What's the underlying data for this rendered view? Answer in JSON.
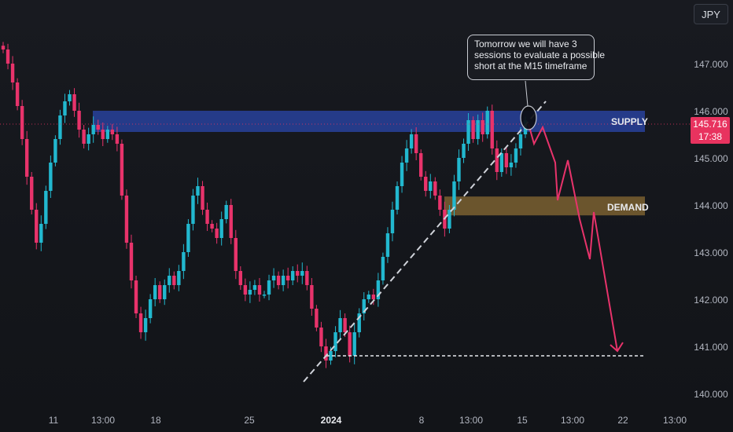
{
  "currency": "JPY",
  "annotation": {
    "lines": [
      "Tomorrow we will have 3",
      "sessions to evaluate a possible",
      "short at the M15 timeframe"
    ]
  },
  "zones": {
    "supply": {
      "label": "SUPPLY",
      "top": 146.0,
      "bottom": 145.55,
      "color": "#2a45a8"
    },
    "demand": {
      "label": "DEMAND",
      "top": 144.18,
      "bottom": 143.78,
      "color": "#7a6030"
    }
  },
  "current_price": {
    "value": "145.716",
    "countdown": "17:38",
    "color": "#e8335f"
  },
  "colors": {
    "up": "#22b8cf",
    "down": "#e8336b",
    "projection": "#e8336b",
    "trendline": "#d0d3da"
  },
  "chart_data": {
    "type": "candlestick",
    "y_axis": {
      "ticks": [
        "147.000",
        "146.000",
        "145.000",
        "144.000",
        "143.000",
        "142.000",
        "141.000",
        "140.000"
      ],
      "range": [
        139.85,
        147.75
      ]
    },
    "x_axis": {
      "ticks": [
        "11",
        "13:00",
        "18",
        "25",
        "2024",
        "8",
        "13:00",
        "15",
        "13:00",
        "22",
        "13:00"
      ]
    },
    "current_price": 145.716,
    "support_level": 140.8,
    "trendline": {
      "from": 140.25,
      "to": 146.2
    },
    "projection_path": [
      145.72,
      145.3,
      145.65,
      144.9,
      144.1,
      144.95,
      143.7,
      142.85,
      143.85,
      140.9
    ],
    "price_path": [
      147.3,
      147.0,
      146.6,
      146.1,
      145.4,
      144.6,
      143.9,
      143.2,
      143.6,
      144.3,
      144.9,
      145.4,
      145.9,
      146.2,
      146.35,
      146.0,
      145.6,
      145.3,
      145.5,
      145.7,
      145.6,
      145.4,
      145.6,
      145.5,
      145.3,
      144.2,
      143.2,
      142.4,
      141.7,
      141.3,
      141.6,
      142.0,
      142.3,
      142.0,
      142.3,
      142.5,
      142.3,
      142.6,
      143.0,
      143.6,
      144.2,
      144.4,
      143.9,
      143.6,
      143.5,
      143.3,
      143.7,
      144.0,
      143.3,
      142.6,
      142.3,
      142.1,
      142.2,
      142.3,
      142.1,
      142.1,
      142.4,
      142.5,
      142.3,
      142.5,
      142.4,
      142.6,
      142.5,
      142.6,
      142.3,
      141.8,
      141.4,
      141.0,
      140.7,
      140.9,
      141.3,
      141.6,
      141.3,
      140.8,
      141.3,
      141.7,
      142.0,
      142.1,
      142.0,
      142.4,
      142.9,
      143.4,
      143.9,
      144.4,
      144.9,
      145.2,
      145.5,
      145.1,
      144.6,
      144.3,
      144.5,
      144.2,
      143.9,
      143.5,
      143.9,
      144.5,
      145.0,
      145.3,
      145.8,
      145.4,
      145.8,
      145.5,
      146.0,
      145.2,
      144.7,
      145.1,
      144.8,
      144.9,
      145.2,
      145.5,
      145.8
    ]
  }
}
